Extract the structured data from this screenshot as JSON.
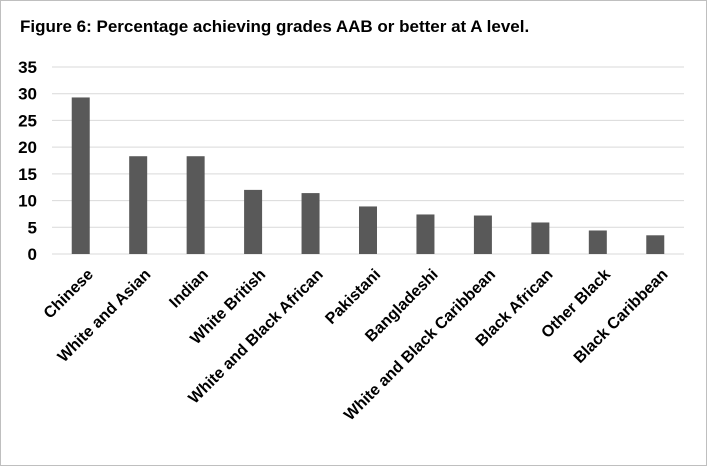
{
  "chart_data": {
    "type": "bar",
    "title": "Figure 6: Percentage achieving grades AAB or better at A level.",
    "categories": [
      "Chinese",
      "White and Asian",
      "Indian",
      "White British",
      "White and Black African",
      "Pakistani",
      "Bangladeshi",
      "White and Black Caribbean",
      "Black African",
      "Other Black",
      "Black Caribbean"
    ],
    "values": [
      29.3,
      18.3,
      18.3,
      12.0,
      11.4,
      8.9,
      7.4,
      7.2,
      5.9,
      4.4,
      3.5
    ],
    "ylim": [
      0,
      35
    ],
    "yticks": [
      "0",
      "5",
      "10",
      "15",
      "20",
      "25",
      "30",
      "35"
    ],
    "xlabel": "",
    "ylabel": "",
    "grid": true,
    "legend": "none",
    "bar_color": "#595959",
    "grid_color": "#d9d9d9"
  }
}
